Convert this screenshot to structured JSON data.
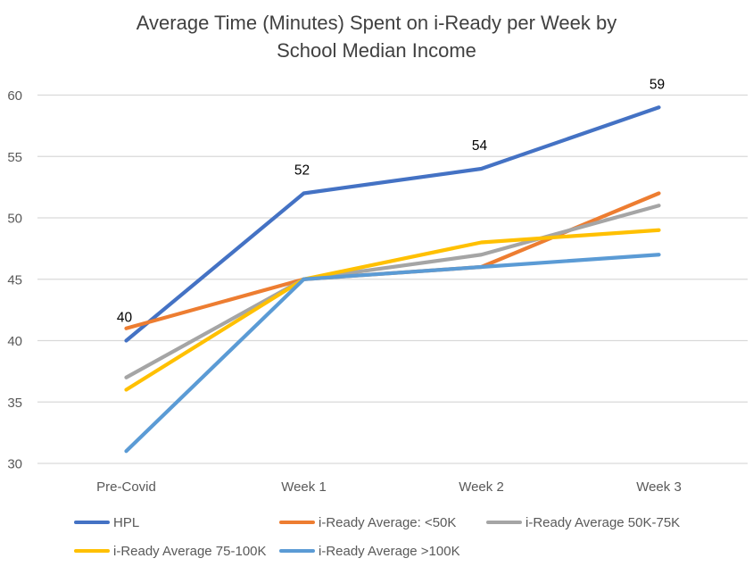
{
  "title": {
    "line1": "Average Time (Minutes) Spent on i-Ready per Week by",
    "line2": "School Median Income"
  },
  "colors": {
    "gridline": "#d9d9d9",
    "axis_line": "#d9d9d9",
    "axis_text": "#595959",
    "title_text": "#404040",
    "legend_text": "#595959",
    "data_label": "#000000",
    "background": "#ffffff"
  },
  "chart_data": {
    "type": "line",
    "title": "Average Time (Minutes) Spent on i-Ready per Week by School Median Income",
    "xlabel": "",
    "ylabel": "",
    "categories": [
      "Pre-Covid",
      "Week 1",
      "Week 2",
      "Week 3"
    ],
    "ylim": [
      30,
      60
    ],
    "yticks": [
      30,
      35,
      40,
      45,
      50,
      55,
      60
    ],
    "grid": true,
    "legend_position": "bottom",
    "series": [
      {
        "id": "hpl",
        "name": "HPL",
        "color": "#4472c4",
        "values": [
          40,
          52,
          54,
          59
        ],
        "show_data_labels": true,
        "data_labels": [
          40,
          52,
          54,
          59
        ]
      },
      {
        "id": "under-50k",
        "name": "i-Ready Average: <50K",
        "color": "#ed7d31",
        "values": [
          41,
          45,
          46,
          52
        ],
        "show_data_labels": false
      },
      {
        "id": "50k-75k",
        "name": "i-Ready Average 50K-75K",
        "color": "#a5a5a5",
        "values": [
          37,
          45,
          47,
          51
        ],
        "show_data_labels": false
      },
      {
        "id": "75-100k",
        "name": "i-Ready Average 75-100K",
        "color": "#ffc000",
        "values": [
          36,
          45,
          48,
          49
        ],
        "show_data_labels": false
      },
      {
        "id": "over-100k",
        "name": "i-Ready Average >100K",
        "color": "#5b9bd5",
        "values": [
          31,
          45,
          46,
          47
        ],
        "show_data_labels": false
      }
    ]
  }
}
